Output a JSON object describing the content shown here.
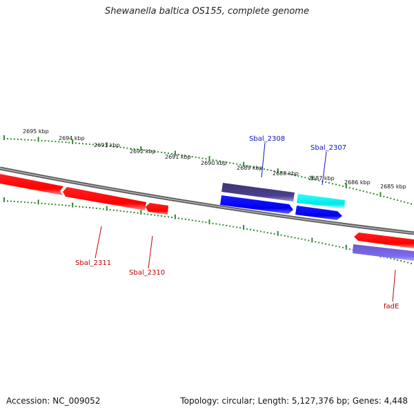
{
  "title": "Shewanella baltica OS155, complete genome",
  "footer": {
    "accession": "Accession: NC_009052",
    "summary": "Topology: circular; Length: 5,127,376 bp; Genes: 4,448"
  },
  "ticks": [
    "2695 kbp",
    "2694 kbp",
    "2693 kbp",
    "2692 kbp",
    "2691 kbp",
    "2690 kbp",
    "2689 kbp",
    "2688 kbp",
    "2687 kbp",
    "2686 kbp",
    "2685 kbp"
  ],
  "genes": {
    "sbal_2308": "Sbal_2308",
    "sbal_2307": "Sbal_2307",
    "sbal_2311": "Sbal_2311",
    "sbal_2310": "Sbal_2310",
    "fade": "fadE"
  },
  "colors": {
    "forward_label": "#1010c0",
    "reverse_label": "#c00000",
    "backbone": "#808080",
    "gc_ticks": "#2a8a2a"
  }
}
